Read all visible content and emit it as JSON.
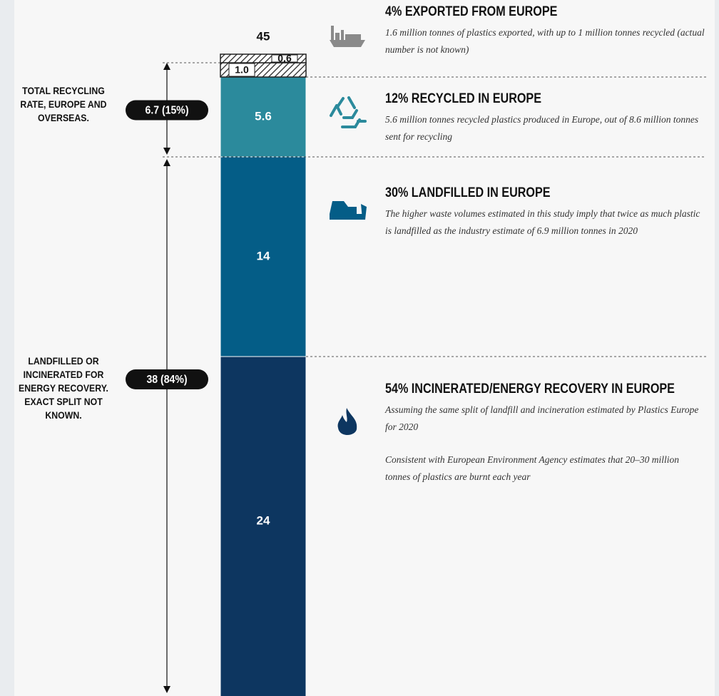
{
  "chart_data": {
    "type": "stacked_bar",
    "total": 45,
    "values": [
      24,
      14,
      5.6,
      1.0,
      0.6
    ],
    "value_labels": [
      "24",
      "14",
      "5.6",
      "1.0",
      "0.6"
    ],
    "colors": [
      "#0d3660",
      "#045d87",
      "#2b8a9c",
      "#ffffff",
      "#ffffff"
    ],
    "hatched": [
      false,
      false,
      false,
      true,
      true
    ],
    "brackets": [
      {
        "label": "6.7 (15%)",
        "text": "TOTAL RECYCLING RATE, EUROPE AND OVERSEAS."
      },
      {
        "label": "38 (84%)",
        "text": "LANDFILLED OR INCINERATED FOR ENERGY RECOVERY. EXACT SPLIT NOT KNOWN."
      }
    ],
    "annotations": [
      {
        "title": "4% EXPORTED FROM EUROPE",
        "paragraphs": [
          "1.6 million tonnes of plastics exported, with up to 1 million tonnes recycled (actual number is not known)"
        ]
      },
      {
        "title": "12% RECYCLED IN EUROPE",
        "paragraphs": [
          "5.6 million tonnes recycled plastics produced in Europe, out of 8.6 million tonnes sent for recycling"
        ]
      },
      {
        "title": "30% LANDFILLED IN EUROPE",
        "paragraphs": [
          "The higher waste volumes estimated in this study imply that twice as much plastic is landfilled as the industry estimate of 6.9 million tonnes in 2020"
        ]
      },
      {
        "title": "54% INCINERATED/ENERGY RECOVERY IN EUROPE",
        "paragraphs": [
          "Assuming the same split of landfill and incineration estimated by Plastics Europe for 2020",
          "Consistent with European Environment Agency estimates that 20–30 million tonnes of plastics are burnt each year"
        ]
      }
    ]
  }
}
